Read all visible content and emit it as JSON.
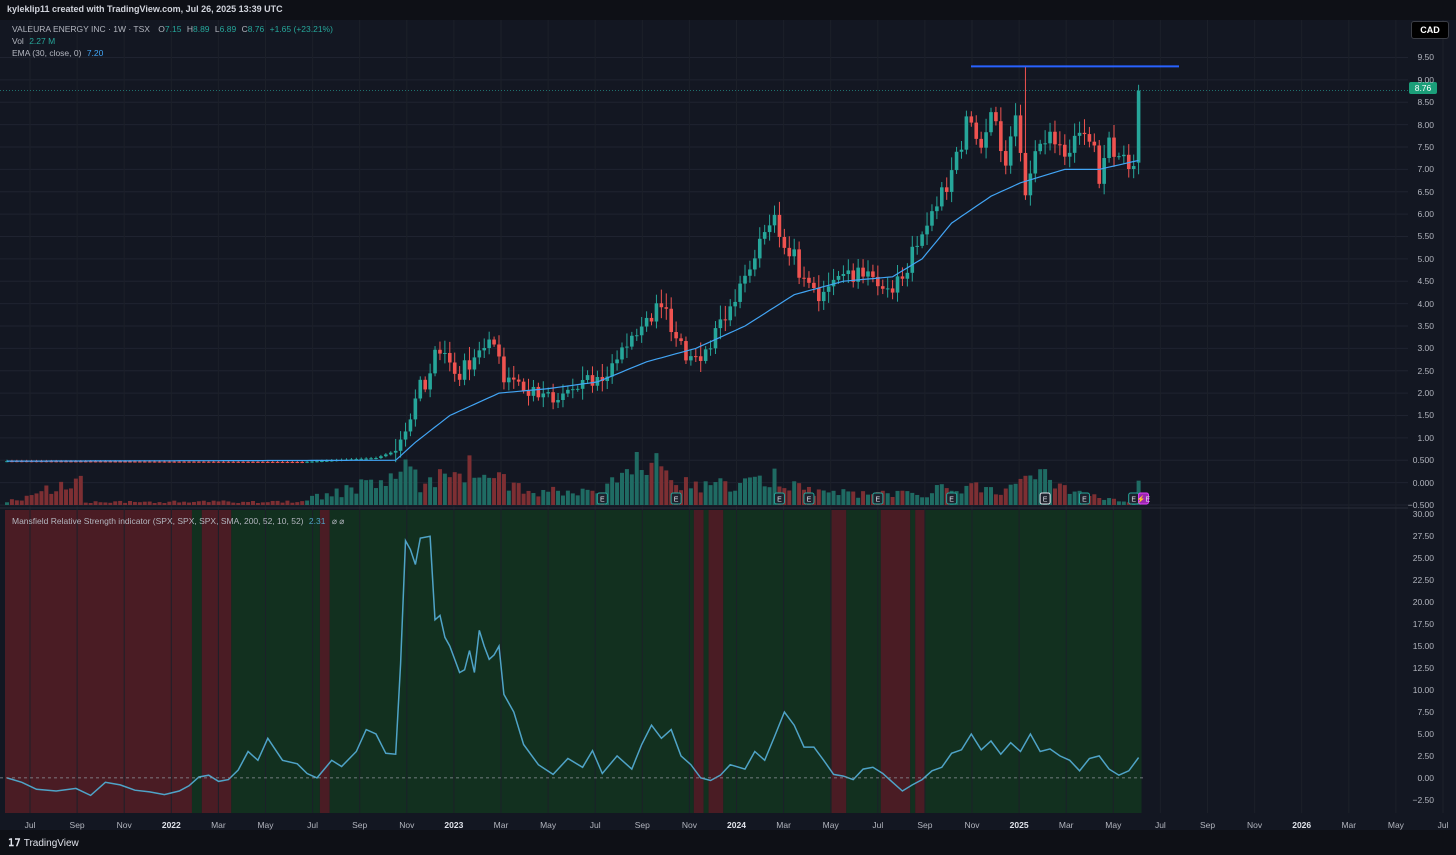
{
  "header": {
    "credit": "kyleklip11 created with TradingView.com, Jul 26, 2025 13:39 UTC",
    "symbol": "VALEURA ENERGY INC · 1W · TSX",
    "ohlc": {
      "o_label": "O",
      "o": "7.15",
      "h_label": "H",
      "h": "8.89",
      "l_label": "L",
      "l": "6.89",
      "c_label": "C",
      "c": "8.76",
      "change": "+1.65 (+23.21%)"
    },
    "vol_label": "Vol",
    "vol": "2.27 M",
    "ema_label": "EMA (30, close, 0)",
    "ema": "7.20",
    "currency": "CAD",
    "last_price": "8.76"
  },
  "indicator": {
    "label": "Mansfield Relative Strength indicator (SPX, SPX, SPX, SMA, 200, 52, 10, 52)",
    "value": "2.31",
    "icons": "⌀ ⌀"
  },
  "footer": {
    "brand": "TradingView"
  },
  "colors": {
    "background": "#131722",
    "up": "#26a69a",
    "down": "#ef5350",
    "ema": "#42a5f5",
    "rs_line": "#4fa3c7",
    "bull_zone": "#12301f",
    "bear_zone": "#4a1c24",
    "resistance": "#2962ff"
  },
  "chart_data": [
    {
      "type": "candlestick",
      "title": "VALEURA ENERGY INC · 1W · TSX",
      "y_axis_ticks": [
        "9.50",
        "9.00",
        "8.50",
        "8.00",
        "7.50",
        "7.00",
        "6.50",
        "6.00",
        "5.50",
        "5.00",
        "4.50",
        "4.00",
        "3.50",
        "3.00",
        "2.50",
        "2.00",
        "1.50",
        "1.00",
        "0.500",
        "0.000",
        "−0.500"
      ],
      "ylim": [
        -0.5,
        9.6
      ],
      "x_axis_ticks": [
        "Jul",
        "Sep",
        "Nov",
        "2022",
        "Mar",
        "May",
        "Jul",
        "Sep",
        "Nov",
        "2023",
        "Mar",
        "May",
        "Jul",
        "Sep",
        "Nov",
        "2024",
        "Mar",
        "May",
        "Jul",
        "Sep",
        "Nov",
        "2025",
        "Mar",
        "May",
        "Jul",
        "Sep",
        "Nov",
        "2026",
        "Mar",
        "May",
        "Jul"
      ],
      "resistance_line": 9.3,
      "earnings_markers": [
        "E",
        "E",
        "E",
        "E",
        "E",
        "E",
        "E",
        "E",
        "E",
        "⚡E"
      ],
      "price_waypoints": [
        [
          0,
          0.48
        ],
        [
          60,
          0.46
        ],
        [
          75,
          0.55
        ],
        [
          80,
          0.75
        ],
        [
          81,
          1.2
        ],
        [
          83,
          1.9
        ],
        [
          86,
          2.5
        ],
        [
          88,
          3.0
        ],
        [
          92,
          2.4
        ],
        [
          95,
          2.9
        ],
        [
          98,
          3.3
        ],
        [
          101,
          2.4
        ],
        [
          106,
          2.0
        ],
        [
          112,
          1.9
        ],
        [
          118,
          2.3
        ],
        [
          122,
          2.5
        ],
        [
          126,
          3.2
        ],
        [
          130,
          3.6
        ],
        [
          133,
          4.0
        ],
        [
          136,
          3.1
        ],
        [
          140,
          2.8
        ],
        [
          144,
          3.3
        ],
        [
          147,
          3.9
        ],
        [
          150,
          4.4
        ],
        [
          153,
          5.6
        ],
        [
          156,
          5.9
        ],
        [
          160,
          5.0
        ],
        [
          164,
          4.2
        ],
        [
          170,
          4.5
        ],
        [
          174,
          4.8
        ],
        [
          178,
          4.2
        ],
        [
          182,
          4.6
        ],
        [
          186,
          5.5
        ],
        [
          190,
          6.4
        ],
        [
          193,
          7.2
        ],
        [
          195,
          8.0
        ],
        [
          198,
          7.7
        ],
        [
          200,
          8.3
        ],
        [
          203,
          7.0
        ],
        [
          205,
          8.4
        ],
        [
          207,
          6.4
        ],
        [
          209,
          7.3
        ],
        [
          212,
          7.8
        ],
        [
          215,
          7.2
        ],
        [
          217,
          7.6
        ],
        [
          220,
          7.8
        ],
        [
          222,
          6.9
        ],
        [
          224,
          7.6
        ],
        [
          227,
          7.2
        ],
        [
          229,
          7.15
        ],
        [
          230,
          8.76
        ]
      ],
      "ema_waypoints": [
        [
          0,
          0.48
        ],
        [
          79,
          0.5
        ],
        [
          83,
          0.9
        ],
        [
          90,
          1.5
        ],
        [
          100,
          2.0
        ],
        [
          110,
          2.1
        ],
        [
          120,
          2.25
        ],
        [
          130,
          2.7
        ],
        [
          140,
          3.0
        ],
        [
          150,
          3.5
        ],
        [
          160,
          4.2
        ],
        [
          170,
          4.5
        ],
        [
          180,
          4.6
        ],
        [
          186,
          5.0
        ],
        [
          192,
          5.8
        ],
        [
          200,
          6.4
        ],
        [
          206,
          6.7
        ],
        [
          215,
          7.0
        ],
        [
          222,
          7.0
        ],
        [
          230,
          7.2
        ]
      ],
      "volume_heights": [
        [
          0,
          0.03
        ],
        [
          15,
          0.26
        ],
        [
          16,
          0.03
        ],
        [
          60,
          0.04
        ],
        [
          65,
          0.12
        ],
        [
          72,
          0.2
        ],
        [
          78,
          0.3
        ],
        [
          81,
          0.35
        ],
        [
          85,
          0.22
        ],
        [
          90,
          0.45
        ],
        [
          100,
          0.3
        ],
        [
          105,
          0.14
        ],
        [
          120,
          0.14
        ],
        [
          127,
          0.34
        ],
        [
          130,
          0.6
        ],
        [
          133,
          0.3
        ],
        [
          140,
          0.23
        ],
        [
          150,
          0.21
        ],
        [
          157,
          0.3
        ],
        [
          165,
          0.14
        ],
        [
          180,
          0.12
        ],
        [
          196,
          0.2
        ],
        [
          205,
          0.18
        ],
        [
          210,
          0.35
        ],
        [
          217,
          0.16
        ],
        [
          229,
          0.02
        ],
        [
          230,
          0.22
        ]
      ]
    },
    {
      "type": "line",
      "title": "Mansfield Relative Strength indicator (SPX, SPX, SPX, SMA, 200, 52, 10, 52)",
      "y_axis_ticks": [
        "30.00",
        "27.50",
        "25.00",
        "22.50",
        "20.00",
        "17.50",
        "15.00",
        "12.50",
        "10.00",
        "7.50",
        "5.00",
        "2.50",
        "0.00",
        "−2.50"
      ],
      "ylim": [
        -4.0,
        30.5
      ],
      "zero_line": 0.0,
      "points": [
        [
          0,
          0.0
        ],
        [
          3,
          -0.5
        ],
        [
          6,
          -1.3
        ],
        [
          10,
          -1.5
        ],
        [
          14,
          -1.2
        ],
        [
          17,
          -2.0
        ],
        [
          20,
          -0.5
        ],
        [
          23,
          -0.8
        ],
        [
          26,
          -1.4
        ],
        [
          29,
          -1.6
        ],
        [
          32,
          -1.9
        ],
        [
          35,
          -1.5
        ],
        [
          37,
          -0.9
        ],
        [
          39,
          0.1
        ],
        [
          41,
          0.3
        ],
        [
          43,
          -0.4
        ],
        [
          45,
          -0.2
        ],
        [
          47,
          0.9
        ],
        [
          49,
          3.0
        ],
        [
          51,
          2.0
        ],
        [
          53,
          4.5
        ],
        [
          56,
          2.0
        ],
        [
          59,
          1.6
        ],
        [
          61,
          0.5
        ],
        [
          63,
          0.0
        ],
        [
          66,
          2.0
        ],
        [
          68,
          1.3
        ],
        [
          71,
          3.0
        ],
        [
          73,
          5.5
        ],
        [
          75,
          5.0
        ],
        [
          77,
          2.8
        ],
        [
          79,
          2.7
        ],
        [
          80,
          13.0
        ],
        [
          81,
          27.0
        ],
        [
          82,
          26.0
        ],
        [
          83,
          24.3
        ],
        [
          84,
          27.3
        ],
        [
          86,
          27.5
        ],
        [
          87,
          18.0
        ],
        [
          88,
          18.5
        ],
        [
          89,
          16.0
        ],
        [
          90,
          15.0
        ],
        [
          91,
          13.5
        ],
        [
          92,
          12.0
        ],
        [
          93,
          12.3
        ],
        [
          94,
          14.5
        ],
        [
          95,
          12.0
        ],
        [
          96,
          16.8
        ],
        [
          97,
          15.0
        ],
        [
          98,
          13.5
        ],
        [
          99,
          14.0
        ],
        [
          100,
          15.0
        ],
        [
          101,
          9.5
        ],
        [
          103,
          7.5
        ],
        [
          105,
          3.8
        ],
        [
          108,
          1.5
        ],
        [
          111,
          0.4
        ],
        [
          114,
          2.2
        ],
        [
          117,
          1.2
        ],
        [
          119,
          3.1
        ],
        [
          121,
          0.5
        ],
        [
          124,
          2.5
        ],
        [
          127,
          1.0
        ],
        [
          129,
          3.8
        ],
        [
          131,
          6.0
        ],
        [
          133,
          4.5
        ],
        [
          135,
          5.5
        ],
        [
          137,
          2.5
        ],
        [
          139,
          1.5
        ],
        [
          141,
          0.0
        ],
        [
          143,
          -0.3
        ],
        [
          145,
          0.3
        ],
        [
          147,
          1.5
        ],
        [
          150,
          1.0
        ],
        [
          152,
          3.0
        ],
        [
          154,
          2.0
        ],
        [
          156,
          4.7
        ],
        [
          158,
          7.5
        ],
        [
          160,
          6.0
        ],
        [
          162,
          3.5
        ],
        [
          164,
          3.5
        ],
        [
          166,
          2.0
        ],
        [
          168,
          0.4
        ],
        [
          170,
          0.2
        ],
        [
          172,
          -0.2
        ],
        [
          174,
          1.0
        ],
        [
          176,
          1.2
        ],
        [
          178,
          0.5
        ],
        [
          180,
          -0.5
        ],
        [
          182,
          -1.5
        ],
        [
          184,
          -0.8
        ],
        [
          186,
          -0.2
        ],
        [
          188,
          0.8
        ],
        [
          190,
          1.2
        ],
        [
          192,
          2.8
        ],
        [
          194,
          3.2
        ],
        [
          196,
          5.0
        ],
        [
          198,
          3.2
        ],
        [
          200,
          4.2
        ],
        [
          202,
          2.7
        ],
        [
          204,
          4.0
        ],
        [
          206,
          3.0
        ],
        [
          208,
          5.0
        ],
        [
          210,
          3.0
        ],
        [
          212,
          3.3
        ],
        [
          214,
          2.5
        ],
        [
          216,
          2.0
        ],
        [
          218,
          0.8
        ],
        [
          220,
          2.2
        ],
        [
          222,
          2.5
        ],
        [
          224,
          1.0
        ],
        [
          226,
          0.3
        ],
        [
          228,
          0.8
        ],
        [
          230,
          2.31
        ]
      ],
      "zones": [
        {
          "from": 0,
          "to": 38,
          "state": "bear"
        },
        {
          "from": 38,
          "to": 40,
          "state": "bull"
        },
        {
          "from": 40,
          "to": 46,
          "state": "bear"
        },
        {
          "from": 46,
          "to": 64,
          "state": "bull"
        },
        {
          "from": 64,
          "to": 66,
          "state": "bear"
        },
        {
          "from": 66,
          "to": 140,
          "state": "bull"
        },
        {
          "from": 140,
          "to": 142,
          "state": "bear"
        },
        {
          "from": 142,
          "to": 143,
          "state": "bull"
        },
        {
          "from": 143,
          "to": 146,
          "state": "bear"
        },
        {
          "from": 146,
          "to": 168,
          "state": "bull"
        },
        {
          "from": 168,
          "to": 171,
          "state": "bear"
        },
        {
          "from": 171,
          "to": 178,
          "state": "bull"
        },
        {
          "from": 178,
          "to": 184,
          "state": "bear"
        },
        {
          "from": 184,
          "to": 185,
          "state": "bull"
        },
        {
          "from": 185,
          "to": 187,
          "state": "bear"
        },
        {
          "from": 187,
          "to": 231,
          "state": "bull"
        }
      ]
    }
  ]
}
